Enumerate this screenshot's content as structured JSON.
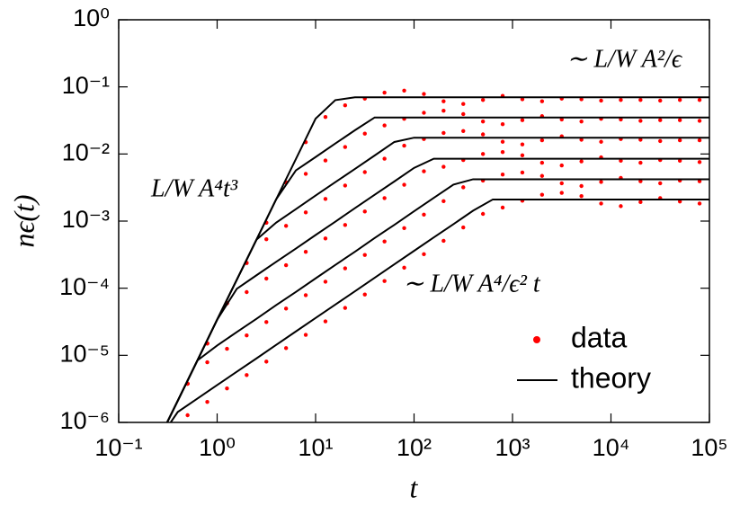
{
  "chart_data": {
    "type": "line",
    "xlabel": "t",
    "ylabel": "nϵ(t)",
    "xscale": "log",
    "yscale": "log",
    "xlim": [
      0.1,
      100000
    ],
    "ylim": [
      1e-06,
      1
    ],
    "xticks": [
      {
        "value": 0.1,
        "label": "10⁻¹"
      },
      {
        "value": 1,
        "label": "10⁰"
      },
      {
        "value": 10,
        "label": "10¹"
      },
      {
        "value": 100,
        "label": "10²"
      },
      {
        "value": 1000,
        "label": "10³"
      },
      {
        "value": 10000,
        "label": "10⁴"
      },
      {
        "value": 100000,
        "label": "10⁵"
      }
    ],
    "yticks": [
      {
        "value": 1e-06,
        "label": "10⁻⁶"
      },
      {
        "value": 1e-05,
        "label": "10⁻⁵"
      },
      {
        "value": 0.0001,
        "label": "10⁻⁴"
      },
      {
        "value": 0.001,
        "label": "10⁻³"
      },
      {
        "value": 0.01,
        "label": "10⁻²"
      },
      {
        "value": 0.1,
        "label": "10⁻¹"
      },
      {
        "value": 1,
        "label": "10⁰"
      }
    ],
    "legend": "lower right",
    "annotations": [
      "L/W A⁴t³",
      "∼ L/W A²/ϵ",
      "∼ L/W A⁴/ϵ² t"
    ],
    "series": [
      {
        "name": "data",
        "color": "#ff0000",
        "style": "points",
        "x": [
          0.316,
          0.501,
          0.794,
          1.259,
          1.995,
          3.162,
          5.012,
          7.943,
          12.59,
          19.95,
          31.62,
          50.12,
          79.43,
          125.9,
          199.5,
          316.2,
          501.2,
          794.3,
          1259,
          1995,
          3162,
          5012,
          7943,
          12590,
          19950,
          31620,
          50120,
          79430
        ],
        "values": [
          [
            9.5e-07,
            3.77e-06,
            1.5e-05,
            5.97e-05,
            0.000238,
            0.000946,
            0.00377,
            0.015,
            0.0356,
            0.0531,
            0.0668,
            0.0822,
            0.0881,
            0.0785,
            0.061,
            0.0556,
            0.0638,
            0.0733,
            0.0653,
            0.061,
            0.0668,
            0.0653,
            0.0624,
            0.0638,
            0.0638,
            0.0624,
            0.0638,
            0.0638
          ],
          [
            9.5e-07,
            3.77e-06,
            1.5e-05,
            5.97e-05,
            0.000238,
            0.000946,
            0.00377,
            0.00506,
            0.008,
            0.0127,
            0.0201,
            0.0266,
            0.0334,
            0.0411,
            0.0441,
            0.0393,
            0.0305,
            0.0278,
            0.0319,
            0.0366,
            0.0327,
            0.0305,
            0.0334,
            0.0327,
            0.0312,
            0.0319,
            0.0319,
            0.0312
          ],
          [
            9.5e-07,
            3.77e-06,
            1.5e-05,
            5.97e-05,
            0.000238,
            0.000537,
            0.00085,
            0.00135,
            0.00214,
            0.00339,
            0.00537,
            0.0085,
            0.0133,
            0.0167,
            0.0206,
            0.022,
            0.0196,
            0.0152,
            0.0139,
            0.016,
            0.0183,
            0.0163,
            0.0152,
            0.0167,
            0.0163,
            0.0156,
            0.016,
            0.016
          ],
          [
            9.5e-07,
            3.77e-06,
            1.5e-05,
            5.97e-05,
            8.75e-05,
            0.000139,
            0.00022,
            0.000348,
            0.000552,
            0.000875,
            0.00139,
            0.0022,
            0.00348,
            0.00552,
            0.00645,
            0.00812,
            0.00999,
            0.0107,
            0.00954,
            0.0074,
            0.00675,
            0.00775,
            0.0089,
            0.00793,
            0.0074,
            0.00812,
            0.00793,
            0.00757
          ],
          [
            9.5e-07,
            3.77e-06,
            7.87e-06,
            1.25e-05,
            1.98e-05,
            3.13e-05,
            4.97e-05,
            7.87e-05,
            0.000125,
            0.000198,
            0.000313,
            0.000497,
            0.000787,
            0.00125,
            0.00198,
            0.00319,
            0.00401,
            0.00494,
            0.00529,
            0.00471,
            0.00366,
            0.00333,
            0.00383,
            0.0044,
            0.00392,
            0.00366,
            0.00401,
            0.00392
          ],
          [
            9.5e-07,
            1.28e-06,
            2.02e-06,
            3.21e-06,
            5.08e-06,
            8.05e-06,
            1.28e-05,
            2.02e-05,
            3.21e-05,
            5.08e-05,
            8.05e-05,
            0.000128,
            0.000202,
            0.000321,
            0.000508,
            0.000805,
            0.00128,
            0.00159,
            0.00201,
            0.00247,
            0.00264,
            0.00236,
            0.00183,
            0.00167,
            0.00192,
            0.0022,
            0.00196,
            0.00183
          ]
        ]
      },
      {
        "name": "theory",
        "color": "#000000",
        "style": "line",
        "x": [
          0.251,
          0.398,
          0.631,
          1,
          1.585,
          2.512,
          3.981,
          6.31,
          10,
          15.85,
          25.12,
          39.81,
          63.1,
          100,
          158.5,
          251.2,
          398.1,
          631,
          1000,
          1585,
          2512,
          3981,
          6310,
          10000,
          15850,
          25120,
          39810,
          63100,
          100000
        ],
        "values": [
          [
            5.3e-07,
            2.1e-06,
            8.4e-06,
            3.4e-05,
            0.000134,
            0.00053,
            0.00212,
            0.0084,
            0.0336,
            0.0634,
            0.07,
            0.07,
            0.07,
            0.07,
            0.07,
            0.07,
            0.07,
            0.07,
            0.07,
            0.07,
            0.07,
            0.07,
            0.07,
            0.07,
            0.07,
            0.07,
            0.07,
            0.07,
            0.07
          ],
          [
            5.3e-07,
            2.1e-06,
            8.4e-06,
            3.4e-05,
            0.000134,
            0.00053,
            0.00212,
            0.0057,
            0.009,
            0.0143,
            0.0226,
            0.035,
            0.035,
            0.035,
            0.035,
            0.035,
            0.035,
            0.035,
            0.035,
            0.035,
            0.035,
            0.035,
            0.035,
            0.035,
            0.035,
            0.035,
            0.035,
            0.035,
            0.035
          ],
          [
            5.3e-07,
            2.1e-06,
            8.4e-06,
            3.4e-05,
            0.000134,
            0.00053,
            0.00095,
            0.00151,
            0.0024,
            0.0038,
            0.006,
            0.0095,
            0.0151,
            0.0175,
            0.0175,
            0.0175,
            0.0175,
            0.0175,
            0.0175,
            0.0175,
            0.0175,
            0.0175,
            0.0175,
            0.0175,
            0.0175,
            0.0175,
            0.0175,
            0.0175,
            0.0175
          ],
          [
            5.3e-07,
            2.1e-06,
            8.4e-06,
            3.4e-05,
            9.8e-05,
            0.000156,
            0.000247,
            0.00039,
            0.00062,
            0.00098,
            0.00156,
            0.00247,
            0.0039,
            0.0062,
            0.0085,
            0.0085,
            0.0085,
            0.0085,
            0.0085,
            0.0085,
            0.0085,
            0.0085,
            0.0085,
            0.0085,
            0.0085,
            0.0085,
            0.0085,
            0.0085,
            0.0085
          ],
          [
            5.3e-07,
            2.1e-06,
            8.4e-06,
            1.4e-05,
            2.22e-05,
            3.5e-05,
            5.6e-05,
            8.8e-05,
            0.00014,
            0.000222,
            0.00035,
            0.00056,
            0.00088,
            0.0014,
            0.00222,
            0.0035,
            0.0042,
            0.0042,
            0.0042,
            0.0042,
            0.0042,
            0.0042,
            0.0042,
            0.0042,
            0.0042,
            0.0042,
            0.0042,
            0.0042,
            0.0042
          ],
          [
            5.3e-07,
            1.43e-06,
            2.27e-06,
            3.6e-06,
            5.7e-06,
            9e-06,
            1.43e-05,
            2.27e-05,
            3.6e-05,
            5.7e-05,
            9e-05,
            0.000143,
            0.000227,
            0.00036,
            0.00057,
            0.0009,
            0.00143,
            0.0021,
            0.0021,
            0.0021,
            0.0021,
            0.0021,
            0.0021,
            0.0021,
            0.0021,
            0.0021,
            0.0021,
            0.0021,
            0.0021
          ]
        ]
      }
    ]
  }
}
